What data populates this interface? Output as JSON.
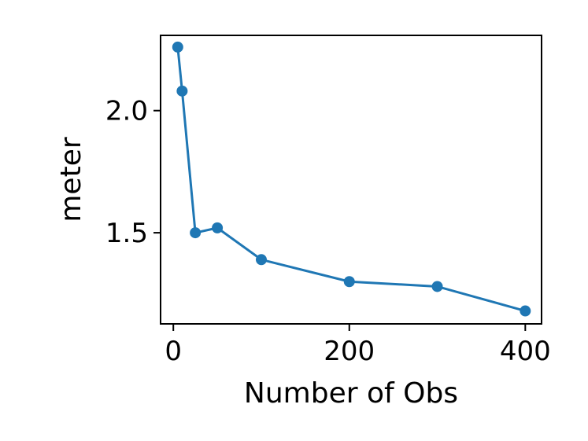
{
  "chart_data": {
    "type": "line",
    "title": "",
    "xlabel": "Number of Obs",
    "ylabel": "meter",
    "x": [
      5,
      10,
      25,
      50,
      100,
      200,
      300,
      400
    ],
    "series": [
      {
        "values": [
          2.26,
          2.08,
          1.5,
          1.52,
          1.39,
          1.3,
          1.28,
          1.18
        ]
      }
    ],
    "xlim": [
      -14.5,
      418.5
    ],
    "ylim": [
      1.127,
      2.308
    ],
    "xticks": [
      0,
      200,
      400
    ],
    "xtick_labels": [
      "0",
      "200",
      "400"
    ],
    "yticks": [
      1.5,
      2.0
    ],
    "ytick_labels": [
      "1.5",
      "2.0"
    ],
    "grid": false,
    "legend": "none",
    "line_color": "#1f77b4"
  }
}
